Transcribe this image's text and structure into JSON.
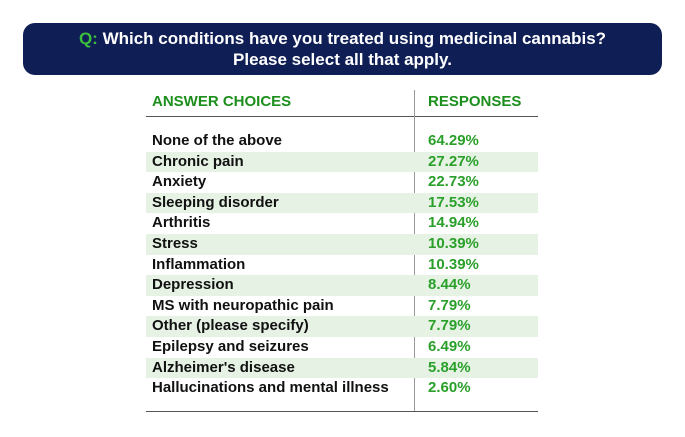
{
  "question": {
    "prefix": "Q:",
    "line1": "Which conditions have you treated using medicinal cannabis?",
    "line2": "Please select all that apply."
  },
  "colors": {
    "banner": "#0f1e55",
    "accent_green": "#2aa02a",
    "row_shade": "#e6f2e4"
  },
  "chart_data": {
    "type": "table",
    "columns": [
      "ANSWER CHOICES",
      "RESPONSES"
    ],
    "rows": [
      {
        "choice": "None of the above",
        "response": "64.29%",
        "value": 64.29
      },
      {
        "choice": "Chronic pain",
        "response": "27.27%",
        "value": 27.27
      },
      {
        "choice": "Anxiety",
        "response": "22.73%",
        "value": 22.73
      },
      {
        "choice": "Sleeping disorder",
        "response": "17.53%",
        "value": 17.53
      },
      {
        "choice": "Arthritis",
        "response": "14.94%",
        "value": 14.94
      },
      {
        "choice": "Stress",
        "response": "10.39%",
        "value": 10.39
      },
      {
        "choice": "Inflammation",
        "response": "10.39%",
        "value": 10.39
      },
      {
        "choice": "Depression",
        "response": "8.44%",
        "value": 8.44
      },
      {
        "choice": "MS with neuropathic pain",
        "response": "7.79%",
        "value": 7.79
      },
      {
        "choice": "Other (please specify)",
        "response": "7.79%",
        "value": 7.79
      },
      {
        "choice": "Epilepsy and seizures",
        "response": "6.49%",
        "value": 6.49
      },
      {
        "choice": "Alzheimer's disease",
        "response": "5.84%",
        "value": 5.84
      },
      {
        "choice": "Hallucinations and mental illness",
        "response": "2.60%",
        "value": 2.6
      }
    ]
  }
}
